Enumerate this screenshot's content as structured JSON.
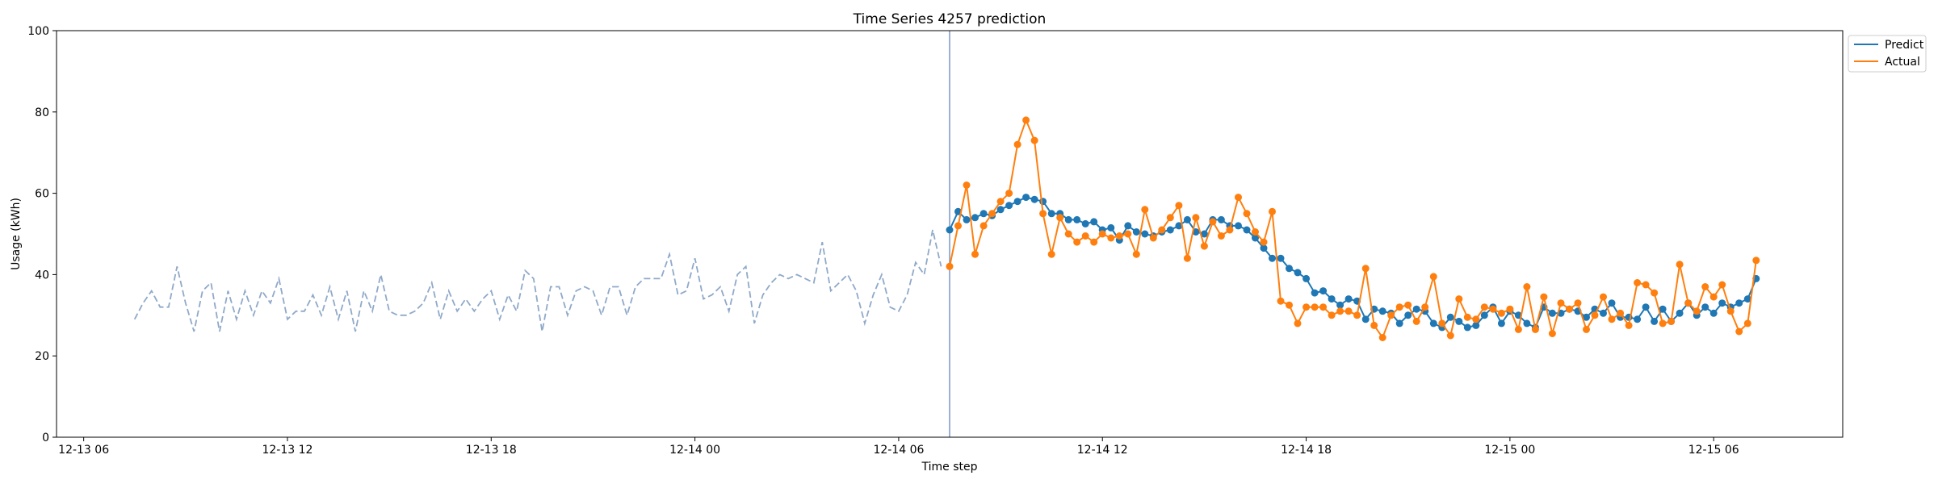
{
  "chart_data": {
    "type": "line",
    "title": "Time Series 4257 prediction",
    "xlabel": "Time step",
    "ylabel": "Usage (kWh)",
    "x_unit": "hours since 12-13 00:00",
    "xlim": [
      5.2,
      57.8
    ],
    "ylim": [
      0,
      100
    ],
    "y_ticks": [
      0,
      20,
      40,
      60,
      80,
      100
    ],
    "x_ticks": [
      {
        "x": 6,
        "label": "12-13 06"
      },
      {
        "x": 12,
        "label": "12-13 12"
      },
      {
        "x": 18,
        "label": "12-13 18"
      },
      {
        "x": 24,
        "label": "12-14 00"
      },
      {
        "x": 30,
        "label": "12-14 06"
      },
      {
        "x": 36,
        "label": "12-14 12"
      },
      {
        "x": 42,
        "label": "12-14 18"
      },
      {
        "x": 48,
        "label": "12-15 00"
      },
      {
        "x": 54,
        "label": "12-15 06"
      }
    ],
    "grid": false,
    "legend_position": "outside top-right",
    "step_hours": 0.25,
    "history": {
      "style": "dashed",
      "color": "#8fa9c9",
      "start_x": 7.5,
      "values": [
        29,
        33,
        36,
        32,
        32,
        42,
        33,
        26,
        36,
        38,
        26,
        36,
        29,
        36,
        30,
        36,
        33,
        39,
        29,
        31,
        31,
        35,
        30,
        37,
        29,
        36,
        26,
        36,
        31,
        40,
        31,
        30,
        30,
        31,
        33,
        38,
        29,
        36,
        31,
        34,
        31,
        34,
        36,
        29,
        35,
        31,
        41,
        39,
        26,
        37,
        37,
        30,
        36,
        37,
        36,
        30,
        37,
        37,
        30,
        37,
        39,
        39,
        39,
        45,
        35,
        36,
        44,
        34,
        35,
        37,
        31,
        40,
        42,
        28,
        35,
        38,
        40,
        39,
        40,
        39,
        38,
        48,
        36,
        38,
        40,
        36,
        28,
        35,
        40,
        32,
        31,
        35,
        43,
        40,
        51,
        42
      ]
    },
    "forecast_start_x": 31.5,
    "forecast_line_color": "#7c97c8",
    "series": [
      {
        "name": "Predict",
        "color": "#1f77b4",
        "start_x": 31.5,
        "values": [
          51,
          55.5,
          53.5,
          54,
          55,
          54.5,
          56,
          57,
          58,
          59,
          58.5,
          58,
          55,
          55,
          53.5,
          53.5,
          52.5,
          53,
          51,
          51.5,
          48.5,
          52,
          50.5,
          50,
          49.5,
          50.5,
          51,
          52,
          53.5,
          50.5,
          50,
          53.5,
          53.5,
          52,
          52,
          51,
          49,
          46.5,
          44,
          44,
          41.5,
          40.5,
          39,
          35.5,
          36,
          34,
          32.5,
          34,
          33.5,
          29,
          31.5,
          31,
          30.5,
          28,
          30,
          31.5,
          31,
          28,
          27,
          29.5,
          28.5,
          27,
          27.5,
          30,
          32,
          28,
          31,
          30,
          28,
          27,
          32,
          30.5,
          30.5,
          31.5,
          31,
          29.5,
          31.5,
          30.5,
          33,
          29.5,
          29.5,
          29,
          32,
          28.5,
          31.5,
          28.5,
          30.5,
          33,
          30,
          32,
          30.5,
          33,
          32,
          33,
          34,
          39
        ]
      },
      {
        "name": "Actual",
        "color": "#ff7f0e",
        "start_x": 31.5,
        "values": [
          42,
          52,
          62,
          45,
          52,
          55,
          58,
          60,
          72,
          78,
          73,
          55,
          45,
          54,
          50,
          48,
          49.5,
          48,
          50,
          49,
          49.5,
          50,
          45,
          56,
          49,
          51,
          54,
          57,
          44,
          54,
          47,
          53,
          49.5,
          51,
          59,
          55,
          50.5,
          48,
          55.5,
          33.5,
          32.5,
          28,
          32,
          32,
          32,
          30,
          31,
          31,
          30,
          41.5,
          27.5,
          24.5,
          30,
          32,
          32.5,
          28.5,
          32,
          39.5,
          28,
          25,
          34,
          29.5,
          29,
          32,
          31.5,
          30.5,
          31.5,
          26.5,
          37,
          26.5,
          34.5,
          25.5,
          33,
          31.5,
          33,
          26.5,
          30,
          34.5,
          29,
          30.5,
          27.5,
          38,
          37.5,
          35.5,
          28,
          28.5,
          42.5,
          33,
          31,
          37,
          34.5,
          37.5,
          31,
          26,
          28,
          43.5
        ]
      }
    ]
  }
}
